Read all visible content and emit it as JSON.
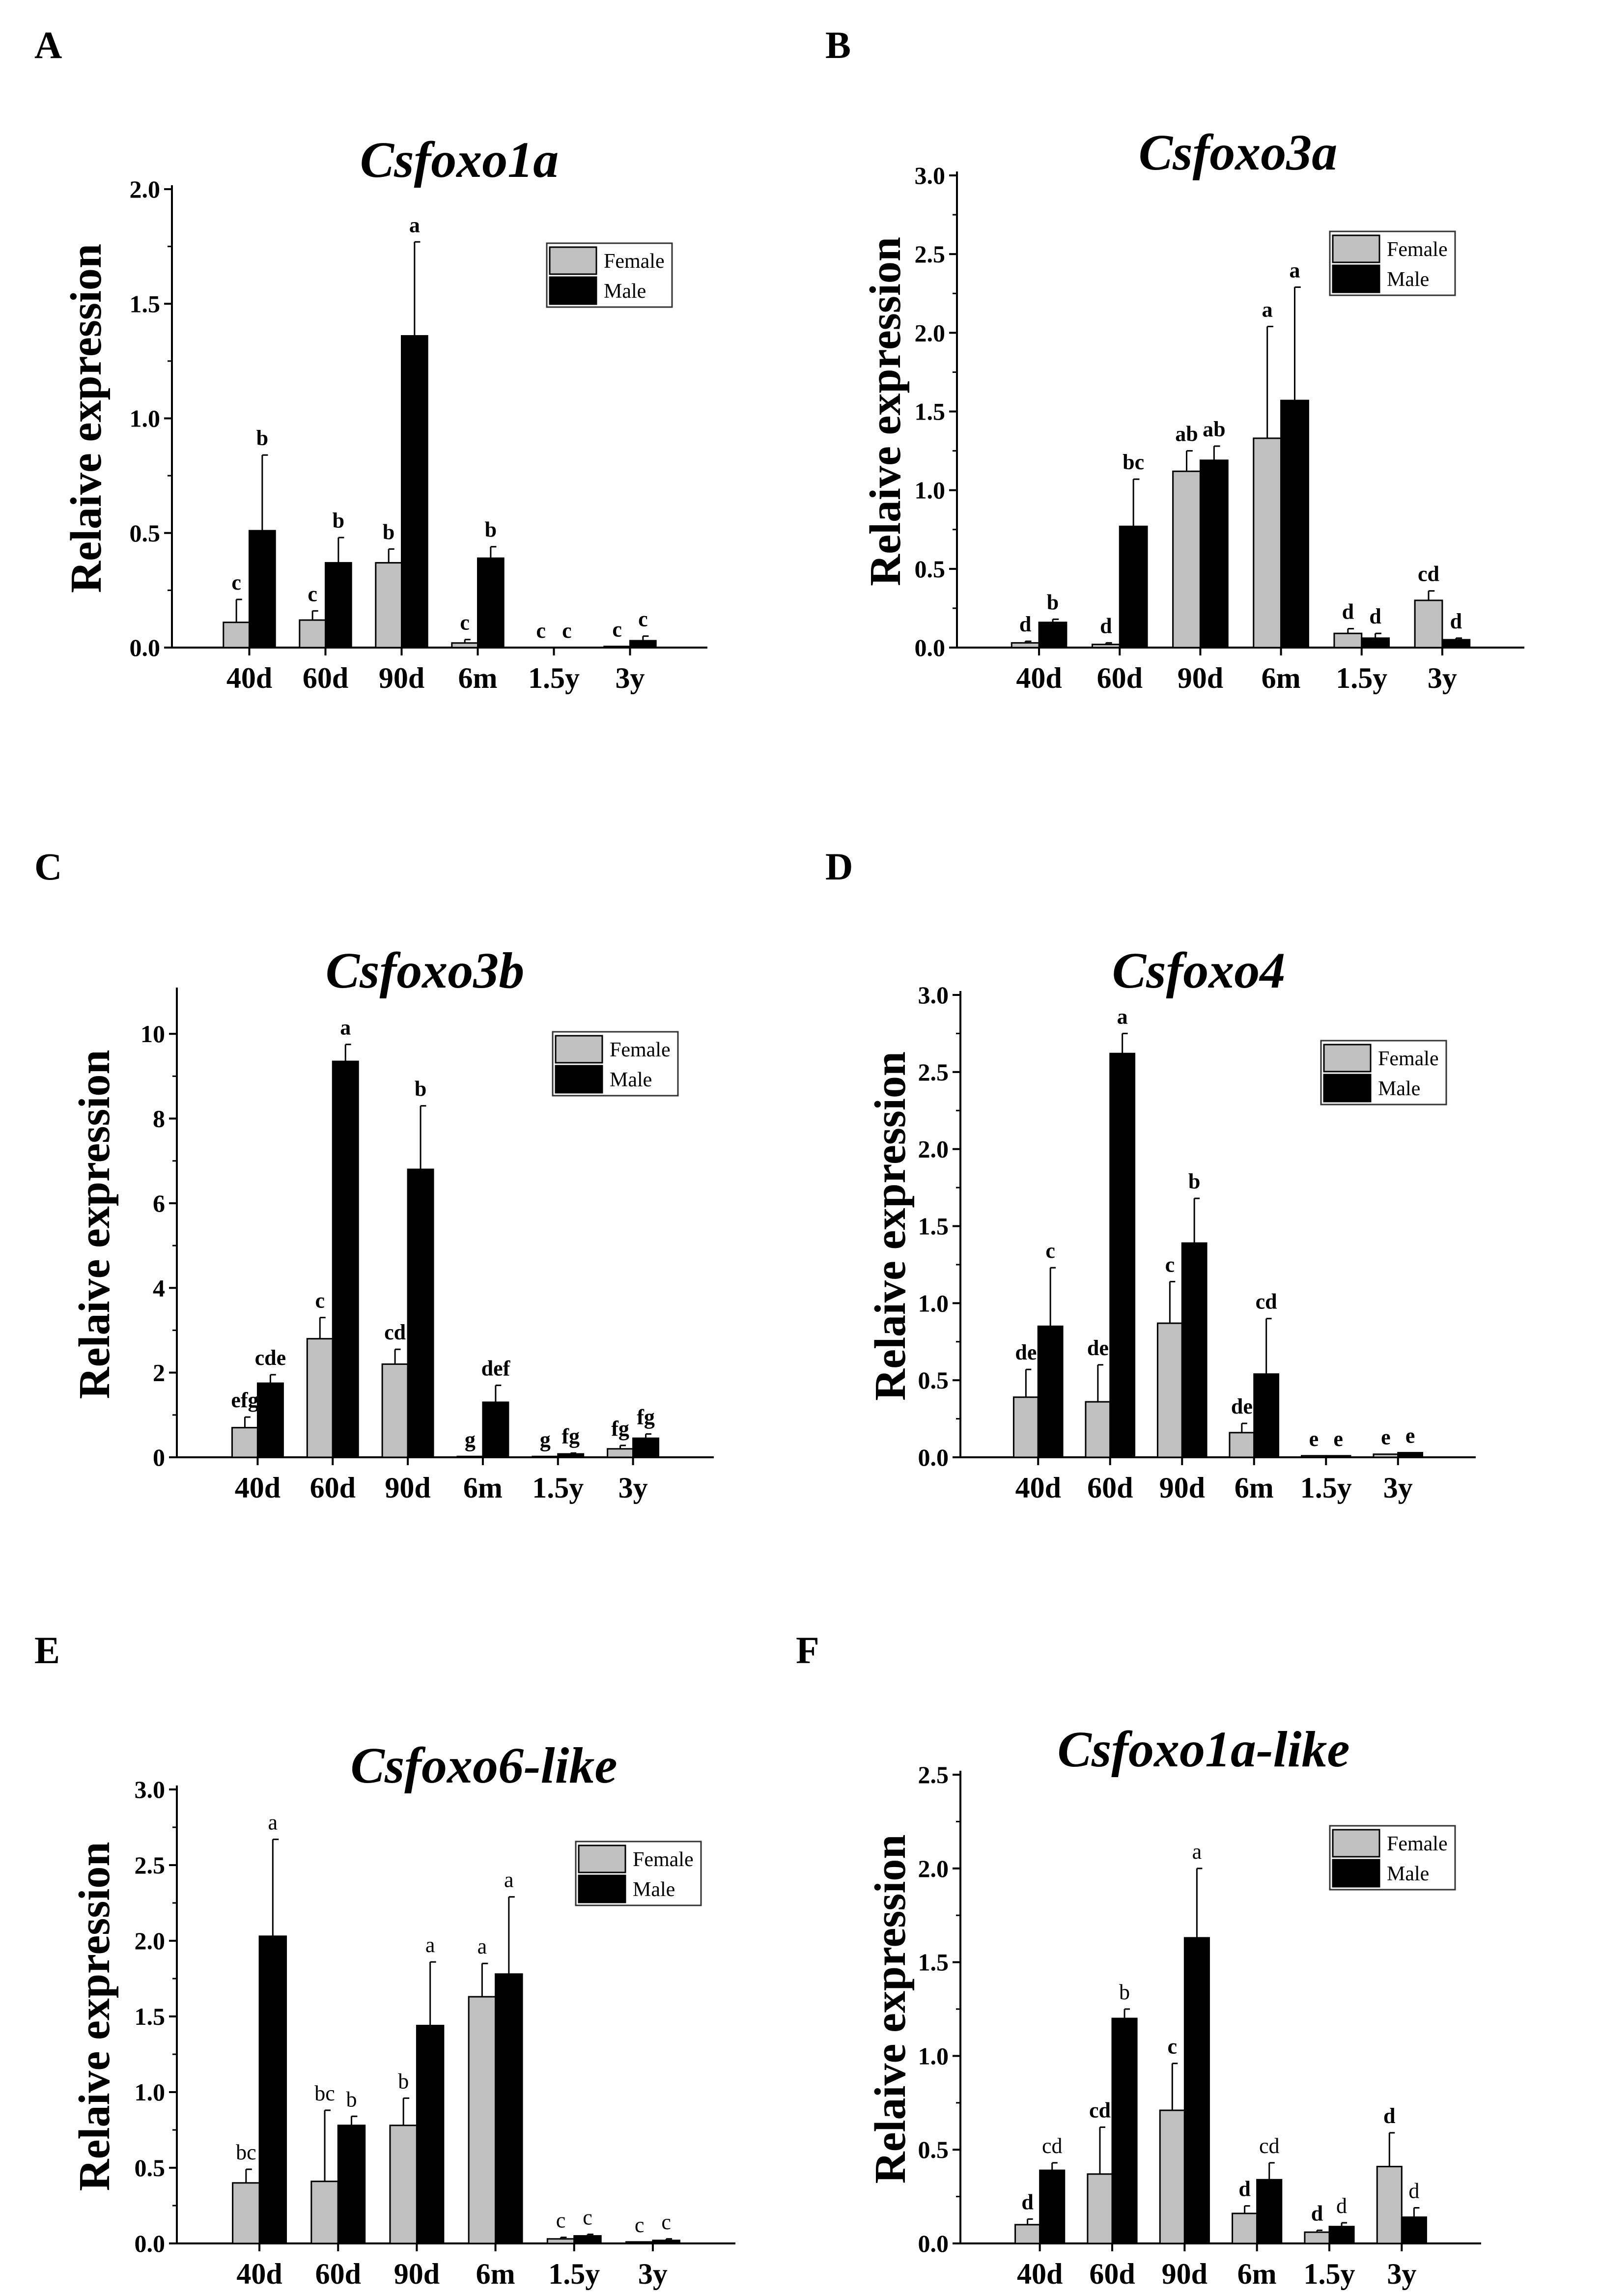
{
  "colors": {
    "female": "#c0c0c0",
    "male": "#000000",
    "axis": "#000000"
  },
  "chart_data": [
    {
      "panel": "A",
      "type": "bar",
      "title": "Csfoxo1a",
      "xlabel": "",
      "ylabel": "Relaive expression",
      "ylim": [
        0,
        2.0
      ],
      "yticks": [
        "0.0",
        "0.5",
        "1.0",
        "1.5",
        "2.0"
      ],
      "ytick_values": [
        0,
        0.5,
        1.0,
        1.5,
        2.0
      ],
      "categories": [
        "40d",
        "60d",
        "90d",
        "6m",
        "1.5y",
        "3y"
      ],
      "legend": [
        "Female",
        "Male"
      ],
      "legend_position": "top-right",
      "letters_bold": true,
      "series": [
        {
          "name": "Female",
          "values": [
            0.11,
            0.12,
            0.37,
            0.02,
            0.0,
            0.005
          ],
          "errors": [
            0.1,
            0.04,
            0.06,
            0.015,
            0.0,
            0.0
          ],
          "letters": [
            "c",
            "c",
            "b",
            "c",
            "c",
            "c"
          ]
        },
        {
          "name": "Male",
          "values": [
            0.51,
            0.37,
            1.36,
            0.39,
            0.0,
            0.03
          ],
          "errors": [
            0.33,
            0.11,
            0.41,
            0.05,
            0.0,
            0.02
          ],
          "letters": [
            "b",
            "b",
            "a",
            "b",
            "c",
            "c"
          ]
        }
      ]
    },
    {
      "panel": "B",
      "type": "bar",
      "title": "Csfoxo3a",
      "xlabel": "",
      "ylabel": "Relaive expression",
      "ylim": [
        0,
        3.0
      ],
      "yticks": [
        "0.0",
        "0.5",
        "1.0",
        "1.5",
        "2.0",
        "2.5",
        "3.0"
      ],
      "ytick_values": [
        0,
        0.5,
        1.0,
        1.5,
        2.0,
        2.5,
        3.0
      ],
      "categories": [
        "40d",
        "60d",
        "90d",
        "6m",
        "1.5y",
        "3y"
      ],
      "legend": [
        "Female",
        "Male"
      ],
      "legend_position": "top-right",
      "letters_bold": true,
      "series": [
        {
          "name": "Female",
          "values": [
            0.03,
            0.02,
            1.12,
            1.33,
            0.09,
            0.3
          ],
          "errors": [
            0.01,
            0.01,
            0.13,
            0.71,
            0.03,
            0.06
          ],
          "letters": [
            "d",
            "d",
            "ab",
            "a",
            "d",
            "cd"
          ]
        },
        {
          "name": "Male",
          "values": [
            0.16,
            0.77,
            1.19,
            1.57,
            0.06,
            0.05
          ],
          "errors": [
            0.02,
            0.3,
            0.09,
            0.72,
            0.03,
            0.01
          ],
          "letters": [
            "b",
            "bc",
            "ab",
            "a",
            "d",
            "d"
          ]
        }
      ]
    },
    {
      "panel": "C",
      "type": "bar",
      "title": "Csfoxo3b",
      "xlabel": "",
      "ylabel": "Relaive expression",
      "ylim": [
        0,
        11
      ],
      "yticks": [
        "0",
        "2",
        "4",
        "6",
        "8",
        "10"
      ],
      "ytick_values": [
        0,
        2,
        4,
        6,
        8,
        10
      ],
      "categories": [
        "40d",
        "60d",
        "90d",
        "6m",
        "1.5y",
        "3y"
      ],
      "legend": [
        "Female",
        "Male"
      ],
      "legend_position": "top-right",
      "letters_bold": true,
      "series": [
        {
          "name": "Female",
          "values": [
            0.7,
            2.8,
            2.2,
            0.02,
            0.02,
            0.2
          ],
          "errors": [
            0.25,
            0.5,
            0.35,
            0.0,
            0.0,
            0.08
          ],
          "letters": [
            "efg",
            "c",
            "cd",
            "g",
            "g",
            "fg"
          ]
        },
        {
          "name": "Male",
          "values": [
            1.75,
            9.35,
            6.8,
            1.3,
            0.08,
            0.45
          ],
          "errors": [
            0.2,
            0.4,
            1.5,
            0.4,
            0.02,
            0.1
          ],
          "letters": [
            "cde",
            "a",
            "b",
            "def",
            "fg",
            "fg"
          ]
        }
      ]
    },
    {
      "panel": "D",
      "type": "bar",
      "title": "Csfoxo4",
      "xlabel": "",
      "ylabel": "Relaive expression",
      "ylim": [
        0,
        3.0
      ],
      "yticks": [
        "0.0",
        "0.5",
        "1.0",
        "1.5",
        "2.0",
        "2.5",
        "3.0"
      ],
      "ytick_values": [
        0,
        0.5,
        1.0,
        1.5,
        2.0,
        2.5,
        3.0
      ],
      "categories": [
        "40d",
        "60d",
        "90d",
        "6m",
        "1.5y",
        "3y"
      ],
      "legend": [
        "Female",
        "Male"
      ],
      "legend_position": "top-right",
      "letters_bold": true,
      "series": [
        {
          "name": "Female",
          "values": [
            0.39,
            0.36,
            0.87,
            0.16,
            0.01,
            0.02
          ],
          "errors": [
            0.18,
            0.24,
            0.27,
            0.06,
            0.0,
            0.0
          ],
          "letters": [
            "de",
            "de",
            "c",
            "de",
            "e",
            "e"
          ]
        },
        {
          "name": "Male",
          "values": [
            0.85,
            2.62,
            1.39,
            0.54,
            0.01,
            0.03
          ],
          "errors": [
            0.38,
            0.13,
            0.29,
            0.36,
            0.0,
            0.0
          ],
          "letters": [
            "c",
            "a",
            "b",
            "cd",
            "e",
            "e"
          ]
        }
      ]
    },
    {
      "panel": "E",
      "type": "bar",
      "title": "Csfoxo6-like",
      "xlabel": "",
      "ylabel": "Relaive expression",
      "ylim": [
        0,
        3.0
      ],
      "yticks": [
        "0.0",
        "0.5",
        "1.0",
        "1.5",
        "2.0",
        "2.5",
        "3.0"
      ],
      "ytick_values": [
        0,
        0.5,
        1.0,
        1.5,
        2.0,
        2.5,
        3.0
      ],
      "categories": [
        "40d",
        "60d",
        "90d",
        "6m",
        "1.5y",
        "3y"
      ],
      "legend": [
        "Female",
        "Male"
      ],
      "legend_position": "top-right",
      "letters_bold": false,
      "series": [
        {
          "name": "Female",
          "values": [
            0.4,
            0.41,
            0.78,
            1.63,
            0.03,
            0.01
          ],
          "errors": [
            0.09,
            0.47,
            0.18,
            0.22,
            0.01,
            0.0
          ],
          "letters": [
            "bc",
            "bc",
            "b",
            "a",
            "c",
            "c"
          ]
        },
        {
          "name": "Male",
          "values": [
            2.03,
            0.78,
            1.44,
            1.78,
            0.05,
            0.02
          ],
          "errors": [
            0.64,
            0.06,
            0.42,
            0.51,
            0.01,
            0.01
          ],
          "letters": [
            "a",
            "b",
            "a",
            "a",
            "c",
            "c"
          ]
        }
      ]
    },
    {
      "panel": "F",
      "type": "bar",
      "title": "Csfoxo1a-like",
      "xlabel": "",
      "ylabel": "Relaive expression",
      "ylim": [
        0,
        2.5
      ],
      "yticks": [
        "0.0",
        "0.5",
        "1.0",
        "1.5",
        "2.0",
        "2.5"
      ],
      "ytick_values": [
        0,
        0.5,
        1.0,
        1.5,
        2.0,
        2.5
      ],
      "categories": [
        "40d",
        "60d",
        "90d",
        "6m",
        "1.5y",
        "3y"
      ],
      "legend": [
        "Female",
        "Male"
      ],
      "legend_position": "top-right",
      "letters_bold": "mixed",
      "series": [
        {
          "name": "Female",
          "values": [
            0.1,
            0.37,
            0.71,
            0.16,
            0.06,
            0.41
          ],
          "errors": [
            0.03,
            0.25,
            0.25,
            0.04,
            0.01,
            0.18
          ],
          "letters": [
            "d",
            "cd",
            "c",
            "d",
            "d",
            "d"
          ],
          "letters_bold": true
        },
        {
          "name": "Male",
          "values": [
            0.39,
            1.2,
            1.63,
            0.34,
            0.09,
            0.14
          ],
          "errors": [
            0.04,
            0.05,
            0.37,
            0.09,
            0.02,
            0.05
          ],
          "letters": [
            "cd",
            "b",
            "a",
            "cd",
            "d",
            "d"
          ],
          "letters_bold": false
        }
      ]
    }
  ]
}
